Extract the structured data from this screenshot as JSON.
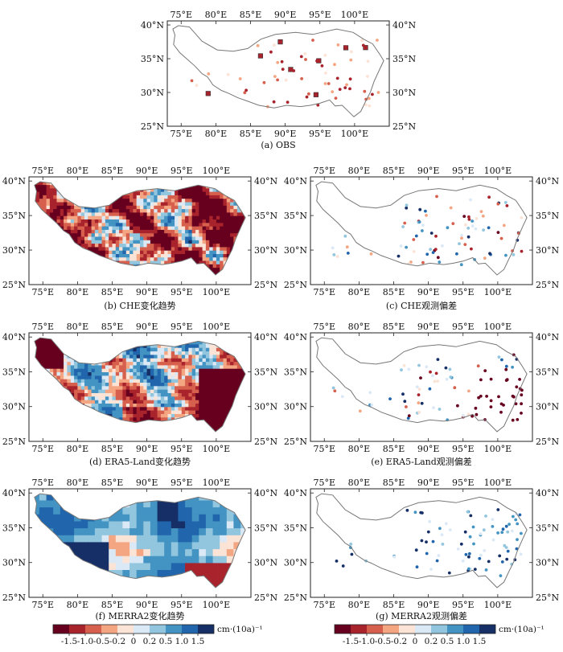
{
  "lon_labels": [
    "75°E",
    "80°E",
    "85°E",
    "90°E",
    "95°E",
    "100°E"
  ],
  "lat_labels": [
    "25°N",
    "30°N",
    "35°N",
    "40°N"
  ],
  "panels": [
    {
      "id": "a",
      "caption": "(a) OBS",
      "kind": "obs-points"
    },
    {
      "id": "b",
      "caption": "(b) CHE变化趋势",
      "kind": "trend-field"
    },
    {
      "id": "c",
      "caption": "(c) CHE观测偏差",
      "kind": "bias-points"
    },
    {
      "id": "d",
      "caption": "(d) ERA5-Land变化趋势",
      "kind": "trend-field"
    },
    {
      "id": "e",
      "caption": "(e) ERA5-Land观测偏差",
      "kind": "bias-points"
    },
    {
      "id": "f",
      "caption": "(f) MERRA2变化趋势",
      "kind": "trend-field"
    },
    {
      "id": "g",
      "caption": "(g) MERRA2观测偏差",
      "kind": "bias-points"
    }
  ],
  "colorbars": [
    {
      "id": "trend",
      "unit": "cm·(10a)⁻¹",
      "ticks": [
        "-1.5",
        "-1.0",
        "-0.5",
        "-0.2",
        "0",
        "0.2",
        "0.5",
        "1.0",
        "1.5"
      ]
    },
    {
      "id": "bias",
      "unit": "cm·(10a)⁻¹",
      "ticks": [
        "-1.5",
        "-1.0",
        "-0.5",
        "-0.2",
        "0",
        "0.2",
        "0.5",
        "1.0",
        "1.5"
      ]
    }
  ],
  "colors": [
    "#67001f",
    "#a8232c",
    "#d6604d",
    "#f4a582",
    "#fbe3d6",
    "#dbe9f6",
    "#92c5de",
    "#4393c3",
    "#2166ac",
    "#162f66"
  ]
}
